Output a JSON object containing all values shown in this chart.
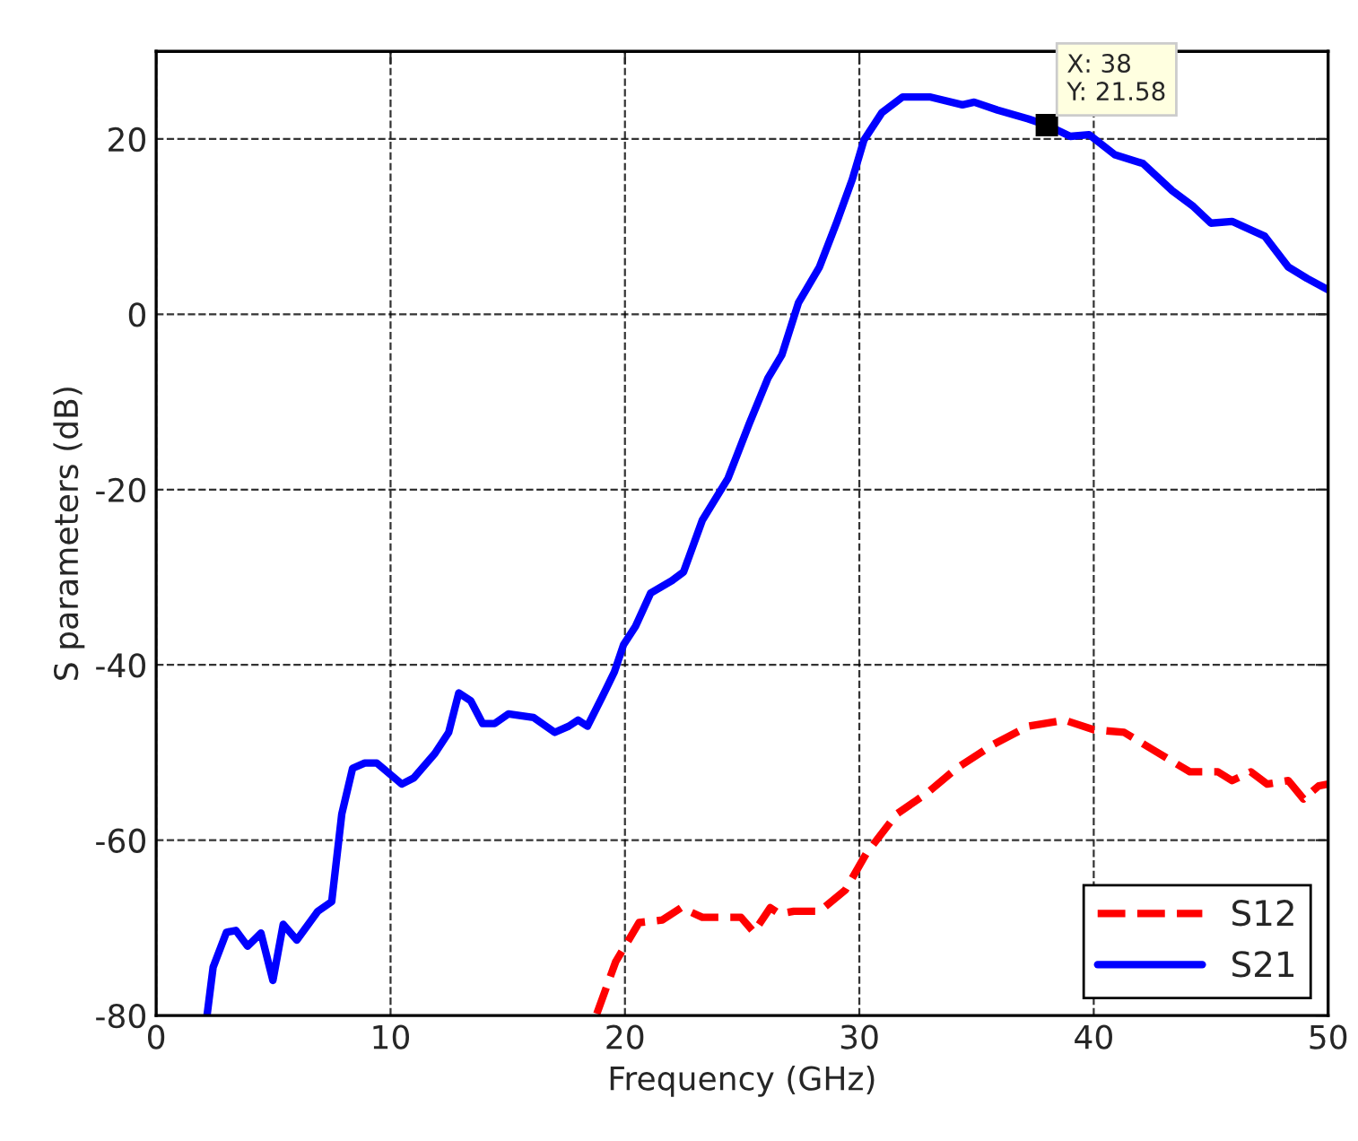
{
  "chart_data": {
    "type": "line",
    "xlabel": "Frequency (GHz)",
    "ylabel": "S parameters (dB)",
    "xlim": [
      0,
      50
    ],
    "ylim": [
      -80,
      30
    ],
    "xticks": [
      0,
      10,
      20,
      30,
      40,
      50
    ],
    "yticks": [
      -80,
      -60,
      -40,
      -20,
      0,
      20
    ],
    "grid": true,
    "legend": "bottom right",
    "marker": "none",
    "annotations": [
      {
        "text": "X: 38\nY: 21.58",
        "x": 38,
        "y": 21.58
      }
    ],
    "series": [
      {
        "name": "S12",
        "color": "#ff0000",
        "line_style": "dashed",
        "x": [
          18.8,
          19.6,
          20.6,
          21.6,
          22.4,
          23.3,
          24.95,
          25.5,
          26.2,
          26.6,
          27.2,
          28.3,
          29.4,
          30.3,
          31.6,
          32.9,
          34.15,
          35.7,
          37.2,
          38.75,
          40.0,
          41.3,
          42.6,
          44.1,
          45.3,
          45.9,
          46.7,
          47.4,
          48.3,
          48.95,
          49.6,
          50.0
        ],
        "values": [
          -79.8,
          -73.9,
          -69.4,
          -69.1,
          -67.7,
          -68.8,
          -68.8,
          -70.5,
          -67.7,
          -68.4,
          -68.1,
          -68.1,
          -65.7,
          -61.5,
          -57,
          -54.6,
          -51.8,
          -49.1,
          -47.0,
          -46.3,
          -47.4,
          -47.7,
          -49.8,
          -52.2,
          -52.2,
          -53.2,
          -52.2,
          -53.6,
          -53.2,
          -55.3,
          -53.8,
          -53.6
        ]
      },
      {
        "name": "S21",
        "color": "#0000ff",
        "line_style": "solid",
        "x": [
          2.17,
          2.43,
          3.0,
          3.4,
          3.9,
          4.47,
          4.98,
          5.42,
          6.0,
          6.9,
          7.49,
          7.92,
          8.38,
          8.9,
          9.41,
          10.48,
          10.99,
          11.89,
          12.48,
          12.91,
          13.42,
          13.93,
          14.44,
          15.03,
          16.1,
          17.0,
          17.6,
          18.0,
          18.4,
          19.04,
          19.55,
          19.94,
          20.45,
          21.1,
          22.0,
          22.5,
          23.3,
          24.4,
          25.3,
          26.1,
          26.7,
          27.4,
          28.3,
          29.05,
          29.7,
          30.2,
          30.96,
          31.85,
          33.0,
          34.4,
          34.9,
          35.9,
          37.2,
          38,
          39.0,
          39.8,
          40.9,
          42.1,
          43.35,
          44.25,
          45.0,
          45.9,
          47.3,
          48.3,
          49.1,
          50.0
        ],
        "values": [
          -80,
          -74.5,
          -70.5,
          -70.3,
          -72.1,
          -70.6,
          -76,
          -69.6,
          -71.4,
          -68.1,
          -67,
          -57,
          -51.8,
          -51.2,
          -51.2,
          -53.6,
          -52.9,
          -50.1,
          -47.7,
          -43.2,
          -44.1,
          -46.7,
          -46.7,
          -45.6,
          -46,
          -47.7,
          -47,
          -46.3,
          -47,
          -43.6,
          -40.8,
          -37.7,
          -35.6,
          -31.8,
          -30.4,
          -29.4,
          -23.5,
          -18.7,
          -12.5,
          -7.3,
          -4.6,
          1.3,
          5.4,
          10.6,
          15.4,
          19.9,
          23.0,
          24.8,
          24.8,
          23.9,
          24.2,
          23.3,
          22.3,
          21.58,
          20.3,
          20.5,
          18.2,
          17.2,
          14.1,
          12.3,
          10.4,
          10.6,
          8.9,
          5.4,
          4.1,
          2.8
        ]
      }
    ]
  }
}
